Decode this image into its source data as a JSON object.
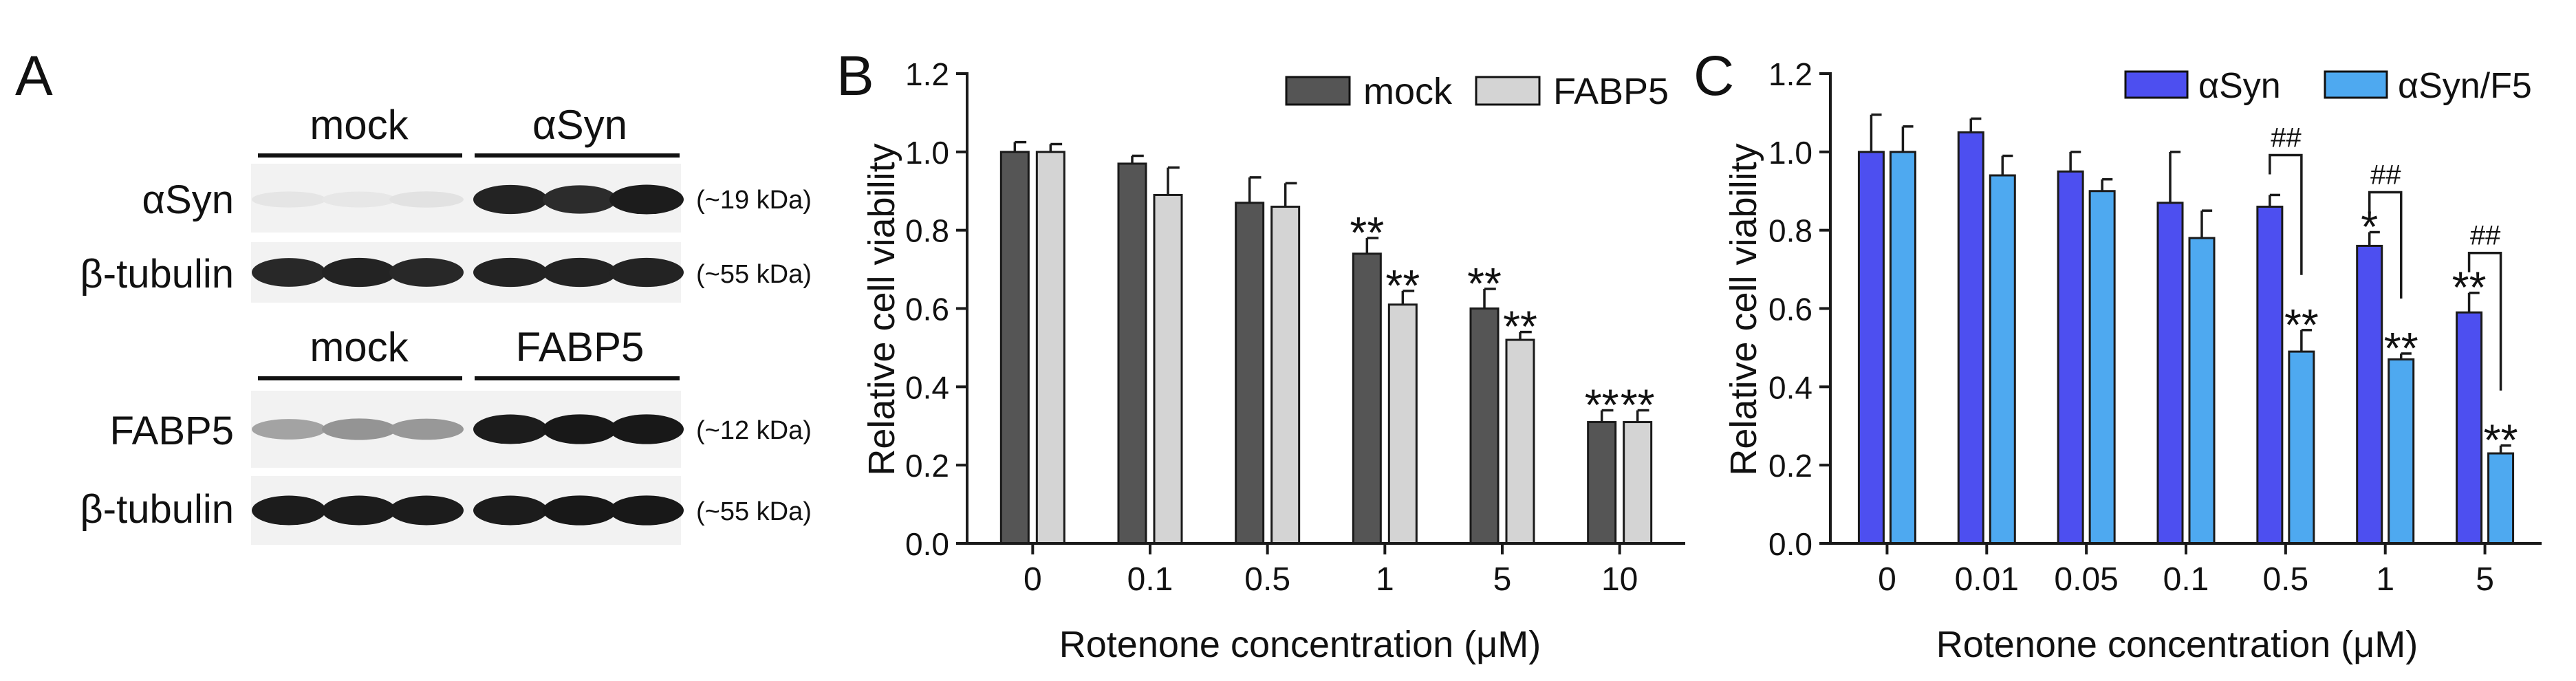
{
  "colors": {
    "blot_bg": "#f2f2f2",
    "mock": "#555555",
    "fabp5": "#d4d4d4",
    "asyn": "#4d4ff0",
    "asyn_f5": "#4ea9f0",
    "axis": "#1a1a1a"
  },
  "panel_a": {
    "letter": "A",
    "top_group_labels": [
      "mock",
      "αSyn"
    ],
    "bottom_group_labels": [
      "mock",
      "FABP5"
    ],
    "rows": [
      {
        "label": "αSyn",
        "kda": "(~19 kDa)",
        "lane_intensity": [
          0.06,
          0.05,
          0.07,
          0.92,
          0.88,
          0.95
        ]
      },
      {
        "label": "β-tubulin",
        "kda": "(~55 kDa)",
        "lane_intensity": [
          0.9,
          0.92,
          0.9,
          0.92,
          0.92,
          0.92
        ]
      },
      {
        "label": "FABP5",
        "kda": "(~12 kDa)",
        "lane_intensity": [
          0.35,
          0.42,
          0.4,
          0.95,
          0.97,
          0.97
        ]
      },
      {
        "label": "β-tubulin",
        "kda": "(~55 kDa)",
        "lane_intensity": [
          0.95,
          0.95,
          0.95,
          0.95,
          0.97,
          0.97
        ]
      }
    ]
  },
  "chart_data": [
    {
      "panel": "B",
      "type": "bar",
      "xlabel": "Rotenone concentration (μM)",
      "ylabel": "Relative cell viability",
      "ylim": [
        0,
        1.2
      ],
      "yticks": [
        "0.0",
        "0.2",
        "0.4",
        "0.6",
        "0.8",
        "1.0",
        "1.2"
      ],
      "categories": [
        "0",
        "0.1",
        "0.5",
        "1",
        "5",
        "10"
      ],
      "legend_position": "top-right",
      "series": [
        {
          "name": "mock",
          "color": "#555555",
          "values": [
            1.0,
            0.97,
            0.87,
            0.74,
            0.6,
            0.31
          ],
          "errors": [
            0.025,
            0.02,
            0.065,
            0.04,
            0.05,
            0.03
          ],
          "annotations": [
            "",
            "",
            "",
            "**",
            "**",
            "**"
          ]
        },
        {
          "name": "FABP5",
          "color": "#d4d4d4",
          "values": [
            1.0,
            0.89,
            0.86,
            0.61,
            0.52,
            0.31
          ],
          "errors": [
            0.02,
            0.07,
            0.06,
            0.035,
            0.02,
            0.03
          ],
          "annotations": [
            "",
            "",
            "",
            "**",
            "**",
            "**"
          ]
        }
      ],
      "brackets": []
    },
    {
      "panel": "C",
      "type": "bar",
      "xlabel": "Rotenone concentration (μM)",
      "ylabel": "Relative cell viability",
      "ylim": [
        0,
        1.2
      ],
      "yticks": [
        "0.0",
        "0.2",
        "0.4",
        "0.6",
        "0.8",
        "1.0",
        "1.2"
      ],
      "categories": [
        "0",
        "0.01",
        "0.05",
        "0.1",
        "0.5",
        "1",
        "5"
      ],
      "legend_position": "top-right",
      "series": [
        {
          "name": "αSyn",
          "color": "#4d4ff0",
          "values": [
            1.0,
            1.05,
            0.95,
            0.87,
            0.86,
            0.76,
            0.59
          ],
          "errors": [
            0.095,
            0.035,
            0.05,
            0.13,
            0.03,
            0.035,
            0.05
          ],
          "annotations": [
            "",
            "",
            "",
            "",
            "",
            "*",
            "**"
          ]
        },
        {
          "name": "αSyn/F5",
          "color": "#4ea9f0",
          "values": [
            1.0,
            0.94,
            0.9,
            0.78,
            0.49,
            0.47,
            0.23
          ],
          "errors": [
            0.065,
            0.05,
            0.03,
            0.07,
            0.055,
            0.015,
            0.02
          ],
          "annotations": [
            "",
            "",
            "",
            "",
            "**",
            "**",
            "**"
          ]
        }
      ],
      "brackets": [
        {
          "category_index": 4,
          "label": "##"
        },
        {
          "category_index": 5,
          "label": "##"
        },
        {
          "category_index": 6,
          "label": "##"
        }
      ]
    }
  ]
}
